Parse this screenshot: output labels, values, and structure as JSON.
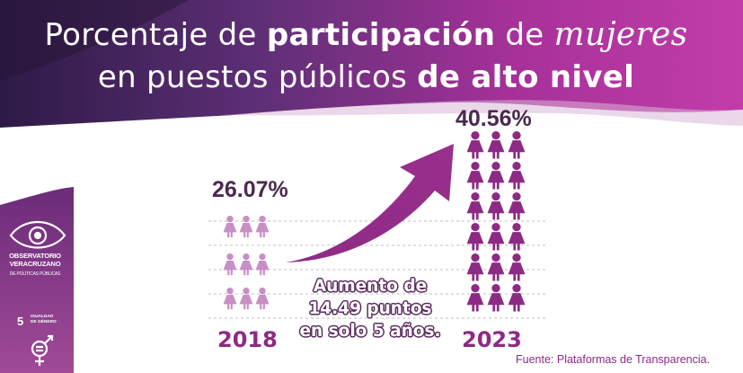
{
  "title": {
    "line1_part1": "Porcentaje de ",
    "line1_part2": "participación",
    "line1_part3": " de ",
    "line1_part4": "mujeres",
    "line2_part1": "en puestos públicos ",
    "line2_part2": "de alto nivel"
  },
  "stats": {
    "y2018": {
      "label": "2018",
      "value_text": "26.07%",
      "value": 26.07
    },
    "y2023": {
      "label": "2023",
      "value_text": "40.56%",
      "value": 40.56
    }
  },
  "caption": {
    "line1": "Aumento de",
    "line2": "14.49 puntos",
    "line3": "en solo 5 años."
  },
  "source": "Fuente: Plataformas de Transparencia.",
  "logo": {
    "name_line1": "OBSERVATORIO",
    "name_line2": "VERACRUZANO",
    "subtitle": "DE POLÍTICAS PÚBLICAS",
    "sdg_number": "5",
    "sdg_line1": "IGUALDAD",
    "sdg_line2": "DE GÉNERO"
  },
  "colors": {
    "purple_dark": "#5a2a5d",
    "purple_mid": "#8d2a84",
    "purple_light": "#b878b3",
    "magenta": "#b2369f",
    "figure_light": "#c88ec6",
    "figure_dark": "#8d2a84"
  },
  "icons": {
    "woman_figure": "woman-icon",
    "arrow": "upward-arrow-icon",
    "eye_logo": "eye-icon",
    "gender_symbol": "gender-equality-icon"
  }
}
